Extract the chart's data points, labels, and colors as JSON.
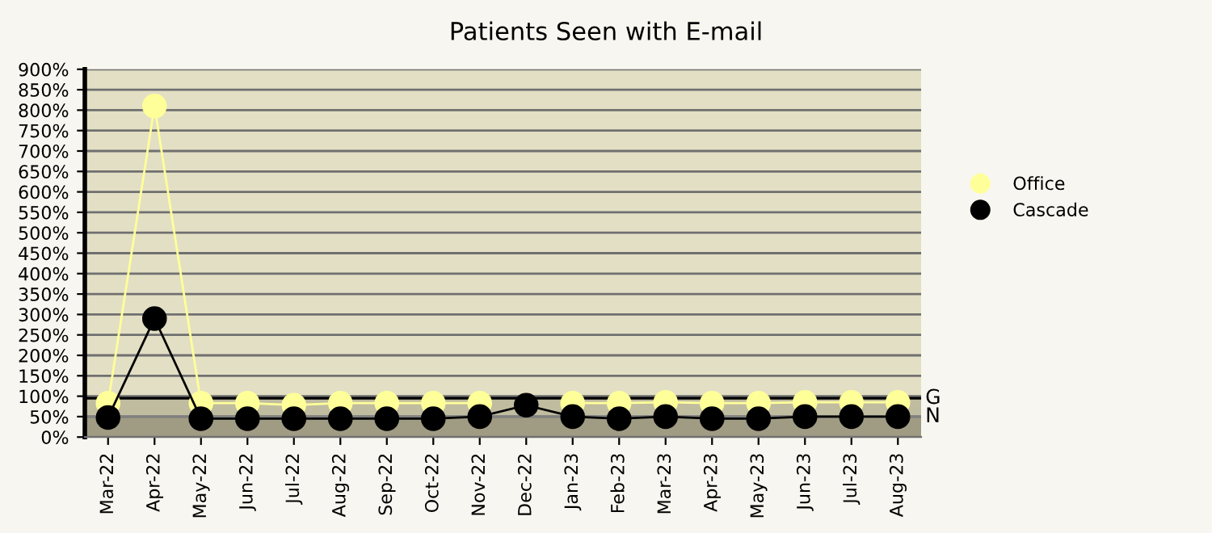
{
  "chart_data": {
    "type": "line",
    "title": "Patients Seen with E-mail",
    "categories": [
      "Mar-22",
      "Apr-22",
      "May-22",
      "Jun-22",
      "Jul-22",
      "Aug-22",
      "Sep-22",
      "Oct-22",
      "Nov-22",
      "Dec-22",
      "Jan-23",
      "Feb-23",
      "Mar-23",
      "Apr-23",
      "May-23",
      "Jun-23",
      "Jul-23",
      "Aug-23"
    ],
    "series": [
      {
        "name": "Office",
        "color": "#ffff99",
        "values": [
          83,
          810,
          83,
          83,
          78,
          83,
          83,
          83,
          83,
          null,
          83,
          83,
          85,
          83,
          83,
          85,
          85,
          85
        ]
      },
      {
        "name": "Cascade",
        "color": "#000000",
        "values": [
          48,
          290,
          45,
          45,
          45,
          45,
          45,
          45,
          50,
          78,
          50,
          45,
          50,
          45,
          45,
          50,
          50,
          50
        ]
      }
    ],
    "ylim": [
      0,
      900
    ],
    "yticks": [
      {
        "value": 0,
        "label": "0%"
      },
      {
        "value": 50,
        "label": "50%"
      },
      {
        "value": 100,
        "label": "100%"
      },
      {
        "value": 150,
        "label": "150%"
      },
      {
        "value": 200,
        "label": "200%"
      },
      {
        "value": 250,
        "label": "250%"
      },
      {
        "value": 300,
        "label": "300%"
      },
      {
        "value": 350,
        "label": "350%"
      },
      {
        "value": 400,
        "label": "400%"
      },
      {
        "value": 450,
        "label": "450%"
      },
      {
        "value": 500,
        "label": "500%"
      },
      {
        "value": 550,
        "label": "550%"
      },
      {
        "value": 600,
        "label": "600%"
      },
      {
        "value": 650,
        "label": "650%"
      },
      {
        "value": 700,
        "label": "700%"
      },
      {
        "value": 750,
        "label": "750%"
      },
      {
        "value": 800,
        "label": "800%"
      },
      {
        "value": 850,
        "label": "850%"
      },
      {
        "value": 900,
        "label": "900%"
      }
    ],
    "bands": [
      {
        "axis": "y",
        "from": 0,
        "to": 50,
        "color": "#a09c84"
      },
      {
        "axis": "y",
        "from": 50,
        "to": 95,
        "color": "#c0bca0"
      }
    ],
    "ref_lines": [
      {
        "axis": "y",
        "value": 95,
        "label": "G",
        "color": "#000000"
      },
      {
        "axis": "y",
        "value": 50,
        "label": "N",
        "color": "#808080"
      }
    ],
    "grid": "y",
    "legend": "right",
    "marker": "circle",
    "line_style": "solid"
  }
}
